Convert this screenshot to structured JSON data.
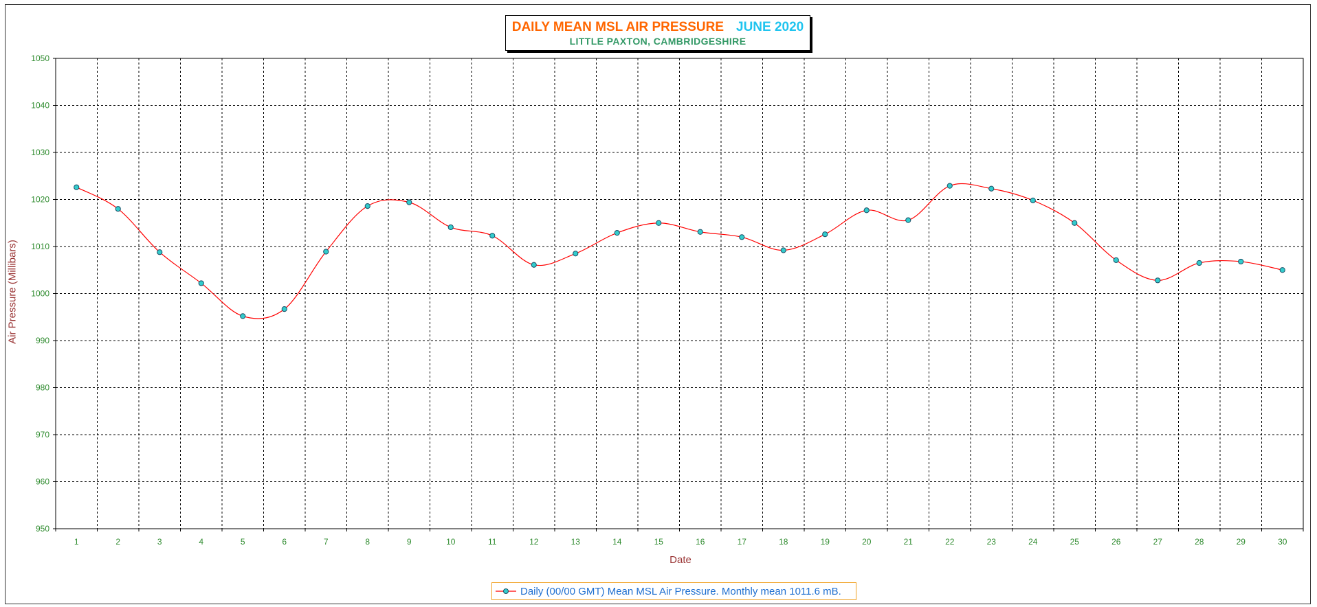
{
  "chart_data": {
    "type": "line",
    "title": "DAILY MEAN MSL AIR PRESSURE",
    "title_period": "JUNE 2020",
    "subtitle": "LITTLE PAXTON, CAMBRIDGESHIRE",
    "xlabel": "Date",
    "ylabel": "Air Pressure (Millibars)",
    "ylim": [
      950,
      1050
    ],
    "y_ticks": [
      950,
      960,
      970,
      980,
      990,
      1000,
      1010,
      1020,
      1030,
      1040,
      1050
    ],
    "x": [
      1,
      2,
      3,
      4,
      5,
      6,
      7,
      8,
      9,
      10,
      11,
      12,
      13,
      14,
      15,
      16,
      17,
      18,
      19,
      20,
      21,
      22,
      23,
      24,
      25,
      26,
      27,
      28,
      29,
      30
    ],
    "series": [
      {
        "name": "Daily (00/00 GMT) Mean MSL Air Pressure. Monthly mean 1011.6 mB.",
        "values": [
          1022.6,
          1018.0,
          1008.8,
          1002.2,
          995.2,
          996.7,
          1008.9,
          1018.6,
          1019.4,
          1014.1,
          1012.3,
          1006.1,
          1008.5,
          1012.9,
          1015.0,
          1013.1,
          1012.0,
          1009.2,
          1012.6,
          1017.7,
          1015.6,
          1022.9,
          1022.3,
          1019.8,
          1015.0,
          1007.1,
          1002.8,
          1006.5,
          1006.8,
          1005.0
        ]
      }
    ],
    "grid": true,
    "legend_position": "bottom-center",
    "colors": {
      "line": "#ff0000",
      "marker_fill": "#33cccc",
      "marker_stroke": "#1a4d66",
      "tick_text": "#2e8b2e",
      "axis_label": "#993333",
      "title_main": "#ff6600",
      "title_period": "#1fc4ef",
      "subtitle": "#339966",
      "legend_text": "#1f6fd0",
      "legend_border": "#f0a020"
    }
  }
}
